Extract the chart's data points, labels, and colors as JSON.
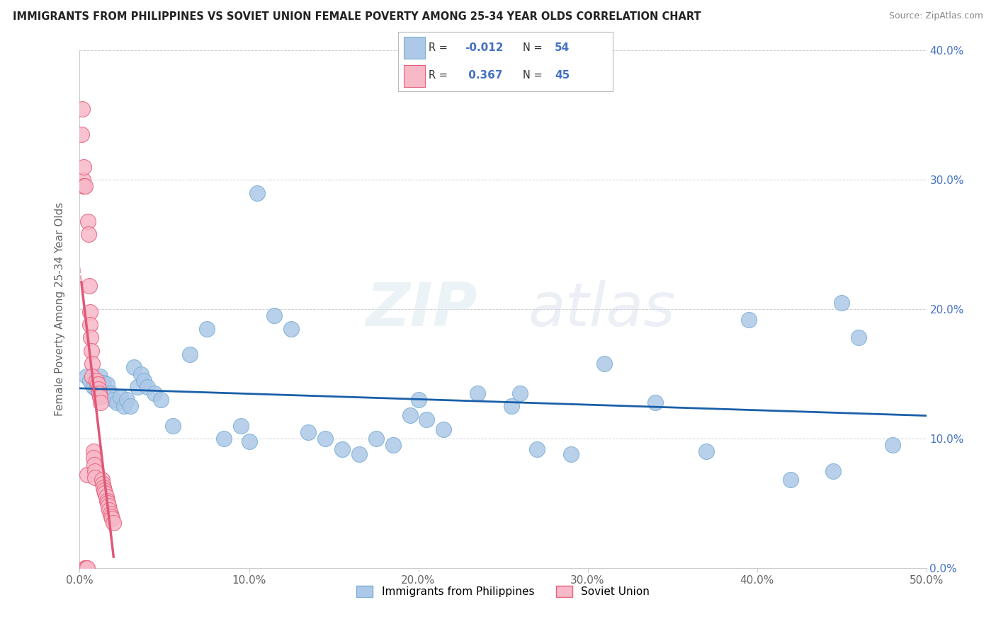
{
  "title": "IMMIGRANTS FROM PHILIPPINES VS SOVIET UNION FEMALE POVERTY AMONG 25-34 YEAR OLDS CORRELATION CHART",
  "source": "Source: ZipAtlas.com",
  "ylabel": "Female Poverty Among 25-34 Year Olds",
  "xlim": [
    0.0,
    0.5
  ],
  "ylim": [
    0.0,
    0.4
  ],
  "xticks": [
    0.0,
    0.1,
    0.2,
    0.3,
    0.4,
    0.5
  ],
  "yticks": [
    0.0,
    0.1,
    0.2,
    0.3,
    0.4
  ],
  "xtick_labels": [
    "0.0%",
    "10.0%",
    "20.0%",
    "30.0%",
    "40.0%",
    "50.0%"
  ],
  "ytick_labels": [
    "0.0%",
    "10.0%",
    "20.0%",
    "30.0%",
    "40.0%"
  ],
  "philippines_color": "#adc8e8",
  "philippines_edge_color": "#7aafd4",
  "soviet_color": "#f7b8c8",
  "soviet_edge_color": "#e8607a",
  "philippines_trend_color": "#1a5fa8",
  "soviet_trend_color": "#e05878",
  "philippines_R": -0.012,
  "philippines_N": 54,
  "soviet_R": 0.367,
  "soviet_N": 45,
  "legend_label_philippines": "Immigrants from Philippines",
  "legend_label_soviet": "Soviet Union",
  "philippines_x": [
    0.004,
    0.006,
    0.008,
    0.01,
    0.012,
    0.014,
    0.016,
    0.018,
    0.02,
    0.022,
    0.024,
    0.026,
    0.028,
    0.03,
    0.032,
    0.034,
    0.036,
    0.038,
    0.04,
    0.044,
    0.048,
    0.055,
    0.065,
    0.075,
    0.085,
    0.095,
    0.105,
    0.115,
    0.125,
    0.135,
    0.145,
    0.155,
    0.165,
    0.175,
    0.185,
    0.195,
    0.205,
    0.215,
    0.235,
    0.255,
    0.27,
    0.29,
    0.31,
    0.34,
    0.37,
    0.395,
    0.42,
    0.445,
    0.46,
    0.48,
    0.1,
    0.2,
    0.26,
    0.45
  ],
  "philippines_y": [
    0.148,
    0.145,
    0.14,
    0.138,
    0.148,
    0.143,
    0.142,
    0.135,
    0.13,
    0.128,
    0.132,
    0.125,
    0.13,
    0.125,
    0.155,
    0.14,
    0.15,
    0.145,
    0.14,
    0.135,
    0.13,
    0.11,
    0.165,
    0.185,
    0.1,
    0.11,
    0.29,
    0.195,
    0.185,
    0.105,
    0.1,
    0.092,
    0.088,
    0.1,
    0.095,
    0.118,
    0.115,
    0.107,
    0.135,
    0.125,
    0.092,
    0.088,
    0.158,
    0.128,
    0.09,
    0.192,
    0.068,
    0.075,
    0.178,
    0.095,
    0.098,
    0.13,
    0.135,
    0.205
  ],
  "soviet_x": [
    0.001,
    0.0015,
    0.002,
    0.0022,
    0.0025,
    0.003,
    0.0032,
    0.0035,
    0.004,
    0.0042,
    0.0045,
    0.005,
    0.0052,
    0.0055,
    0.006,
    0.0062,
    0.0065,
    0.007,
    0.0072,
    0.0075,
    0.008,
    0.0082,
    0.0085,
    0.009,
    0.0092,
    0.01,
    0.0105,
    0.011,
    0.0115,
    0.012,
    0.0125,
    0.013,
    0.0135,
    0.014,
    0.0145,
    0.015,
    0.0155,
    0.016,
    0.0165,
    0.017,
    0.0175,
    0.018,
    0.0185,
    0.019,
    0.02
  ],
  "soviet_y": [
    0.335,
    0.355,
    0.3,
    0.31,
    0.295,
    0.295,
    0.0,
    0.0,
    0.0,
    0.0,
    0.072,
    0.268,
    0.258,
    0.218,
    0.198,
    0.188,
    0.178,
    0.168,
    0.158,
    0.148,
    0.09,
    0.085,
    0.08,
    0.075,
    0.07,
    0.145,
    0.142,
    0.138,
    0.135,
    0.132,
    0.128,
    0.068,
    0.065,
    0.062,
    0.06,
    0.058,
    0.055,
    0.052,
    0.05,
    0.048,
    0.045,
    0.042,
    0.04,
    0.038,
    0.035
  ],
  "watermark_zip": "ZIP",
  "watermark_atlas": "atlas",
  "background_color": "#ffffff",
  "grid_color": "#d0d0d0"
}
